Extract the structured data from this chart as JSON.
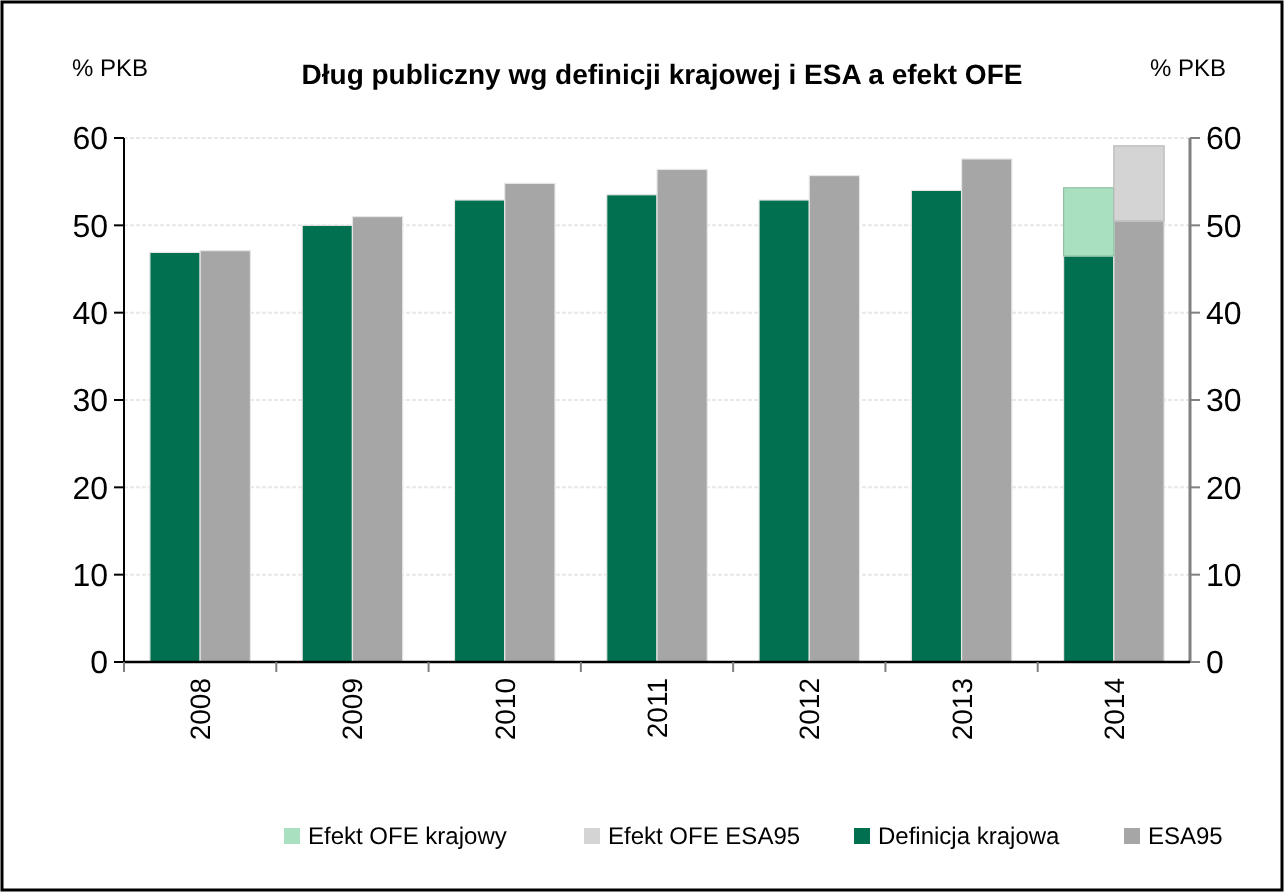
{
  "chart_data": {
    "type": "bar",
    "title": "Dług publiczny wg definicji krajowej i ESA a efekt OFE",
    "ylabel": "% PKB",
    "y2label": "% PKB",
    "categories": [
      "2008",
      "2009",
      "2010",
      "2011",
      "2012",
      "2013",
      "2014"
    ],
    "series": [
      {
        "name": "Definicja krajowa",
        "color": "#007050",
        "values": [
          46.9,
          50.0,
          52.9,
          53.5,
          52.9,
          54.0,
          46.5
        ]
      },
      {
        "name": "ESA95",
        "color": "#a6a6a6",
        "values": [
          47.1,
          51.0,
          54.8,
          56.4,
          55.7,
          57.6,
          50.5
        ]
      },
      {
        "name": "Efekt OFE krajowy",
        "color": "#a8e0c0",
        "values": [
          null,
          null,
          null,
          null,
          null,
          null,
          7.8
        ],
        "base": [
          null,
          null,
          null,
          null,
          null,
          null,
          46.5
        ]
      },
      {
        "name": "Efekt OFE ESA95",
        "color": "#d4d4d4",
        "values": [
          null,
          null,
          null,
          null,
          null,
          null,
          8.6
        ],
        "base": [
          null,
          null,
          null,
          null,
          null,
          null,
          50.5
        ]
      }
    ],
    "ylim": [
      0,
      60
    ],
    "yticks": [
      0,
      10,
      20,
      30,
      40,
      50,
      60
    ],
    "y2lim": [
      0,
      60
    ],
    "y2ticks": [
      0,
      10,
      20,
      30,
      40,
      50,
      60
    ],
    "grid": "y",
    "legend": "bottom"
  }
}
